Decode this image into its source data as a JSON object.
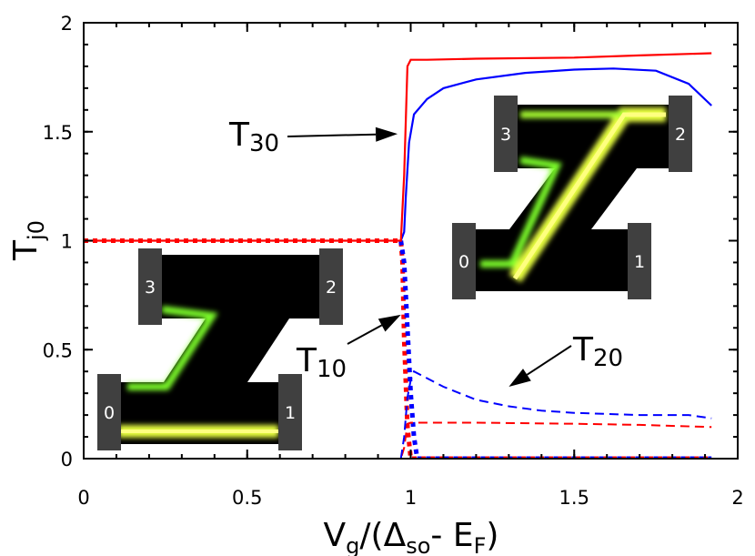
{
  "chart_data": {
    "type": "line",
    "xlabel": {
      "main": "V",
      "sub_g": "g",
      "mid": "/(Δ",
      "sub_so": "so",
      "sep": "- E",
      "sub_F": "F",
      "close": ")"
    },
    "ylabel": {
      "main": "T",
      "sub": "j0"
    },
    "xlim": [
      0,
      2
    ],
    "ylim": [
      0,
      2
    ],
    "xticks": [
      0,
      0.5,
      1,
      1.5,
      2
    ],
    "xtick_labels": [
      "0",
      "0.5",
      "1",
      "1.5",
      "2"
    ],
    "yticks": [
      0,
      0.5,
      1,
      1.5,
      2
    ],
    "ytick_labels": [
      "0",
      "0.5",
      "1",
      "1.5",
      "2"
    ],
    "grid": false,
    "series": [
      {
        "key": "red_solid",
        "color": "#ff0000",
        "style": "solid",
        "x": [
          0,
          0.97,
          0.98,
          0.99,
          1.0,
          1.05,
          1.2,
          1.5,
          1.7,
          1.92
        ],
        "y": [
          1.0,
          1.0,
          1.3,
          1.8,
          1.83,
          1.83,
          1.835,
          1.84,
          1.85,
          1.86
        ]
      },
      {
        "key": "blue_solid",
        "color": "#0000ff",
        "style": "solid",
        "x": [
          0.97,
          0.98,
          0.985,
          0.995,
          1.01,
          1.05,
          1.1,
          1.2,
          1.35,
          1.5,
          1.62,
          1.75,
          1.85,
          1.92
        ],
        "y": [
          1.0,
          1.04,
          1.2,
          1.45,
          1.58,
          1.65,
          1.7,
          1.74,
          1.77,
          1.785,
          1.79,
          1.78,
          1.72,
          1.62
        ]
      },
      {
        "key": "red_dashed",
        "color": "#ff0000",
        "style": "dashed",
        "x": [
          0,
          0.97,
          0.98,
          0.99,
          1.0,
          1.2,
          1.5,
          1.7,
          1.92
        ],
        "y": [
          0,
          0,
          0.05,
          0.16,
          0.165,
          0.165,
          0.16,
          0.155,
          0.145
        ]
      },
      {
        "key": "blue_dashed",
        "color": "#0000ff",
        "style": "dashed",
        "x": [
          0.97,
          0.98,
          0.99,
          1.0,
          1.01,
          1.1,
          1.2,
          1.3,
          1.4,
          1.5,
          1.6,
          1.7,
          1.8,
          1.85,
          1.92
        ],
        "y": [
          0,
          0.1,
          0.28,
          0.36,
          0.4,
          0.33,
          0.27,
          0.24,
          0.22,
          0.21,
          0.205,
          0.2,
          0.2,
          0.2,
          0.185
        ]
      },
      {
        "key": "red_dotted",
        "color": "#ff0000",
        "style": "dotted",
        "x": [
          0,
          0.97,
          0.975,
          0.98,
          0.99,
          1.0,
          1.92
        ],
        "y": [
          1.0,
          1.0,
          0.9,
          0.55,
          0.15,
          0.0,
          0.0
        ]
      },
      {
        "key": "blue_dotted",
        "color": "#0000ff",
        "style": "dotted",
        "x": [
          0.97,
          0.98,
          0.99,
          1.0,
          1.01,
          1.02,
          1.05,
          1.92
        ],
        "y": [
          1.0,
          0.9,
          0.6,
          0.3,
          0.1,
          0.0,
          0.0,
          0.0
        ]
      }
    ],
    "annotations": [
      {
        "key": "t30",
        "main": "T",
        "sub": "30",
        "arrow_to": [
          0.96,
          1.49
        ]
      },
      {
        "key": "t10",
        "main": "T",
        "sub": "10",
        "arrow_to": [
          0.97,
          0.66
        ]
      },
      {
        "key": "t20",
        "main": "T",
        "sub": "20",
        "arrow_to": [
          1.3,
          0.33
        ]
      }
    ],
    "insets": [
      {
        "key": "inset_left",
        "lead_labels": [
          "0",
          "1",
          "2",
          "3"
        ]
      },
      {
        "key": "inset_right",
        "lead_labels": [
          "0",
          "1",
          "2",
          "3"
        ]
      }
    ]
  }
}
